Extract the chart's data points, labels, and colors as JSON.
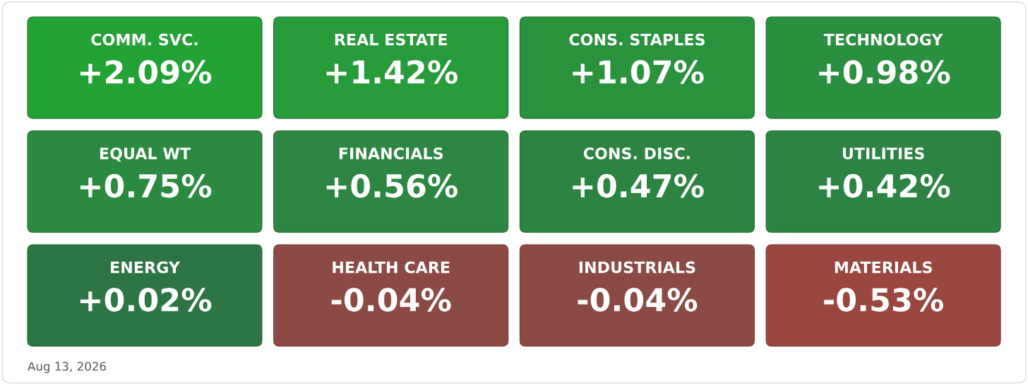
{
  "chart_data": {
    "type": "other",
    "categories": [
      "COMM. SVC.",
      "REAL ESTATE",
      "CONS. STAPLES",
      "TECHNOLOGY",
      "EQUAL WT",
      "FINANCIALS",
      "CONS. DISC.",
      "UTILITIES",
      "ENERGY",
      "HEALTH CARE",
      "INDUSTRIALS",
      "MATERIALS"
    ],
    "values": [
      2.09,
      1.42,
      1.07,
      0.98,
      0.75,
      0.56,
      0.47,
      0.42,
      0.02,
      -0.04,
      -0.04,
      -0.53
    ],
    "value_labels": [
      "+2.09%",
      "+1.42%",
      "+1.07%",
      "+0.98%",
      "+0.75%",
      "+0.56%",
      "+0.47%",
      "+0.42%",
      "+0.02%",
      "-0.04%",
      "-0.04%",
      "-0.53%"
    ],
    "colors": [
      "#22a235",
      "#279a3a",
      "#2a923d",
      "#2a8f3e",
      "#2c8a40",
      "#2d8641",
      "#2d8441",
      "#2d8342",
      "#2e7544",
      "#8b4b44",
      "#8b4b44",
      "#9a473f"
    ],
    "annotations": [
      "Aug 13, 2026"
    ]
  }
}
